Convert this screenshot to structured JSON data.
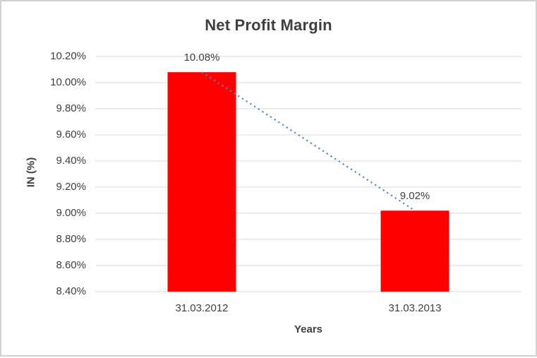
{
  "chart_data": {
    "type": "bar",
    "title": "Net Profit Margin",
    "xlabel": "Years",
    "ylabel": "IN (%)",
    "categories": [
      "31.03.2012",
      "31.03.2013"
    ],
    "values": [
      10.08,
      9.02
    ],
    "data_labels": [
      "10.08%",
      "9.02%"
    ],
    "unit": "%",
    "ylim": [
      8.4,
      10.2
    ],
    "y_tick_step": 0.2,
    "y_ticks": [
      {
        "value": 10.2,
        "label": "10.20%"
      },
      {
        "value": 10.0,
        "label": "10.00%"
      },
      {
        "value": 9.8,
        "label": "9.80%"
      },
      {
        "value": 9.6,
        "label": "9.60%"
      },
      {
        "value": 9.4,
        "label": "9.40%"
      },
      {
        "value": 9.2,
        "label": "9.20%"
      },
      {
        "value": 9.0,
        "label": "9.00%"
      },
      {
        "value": 8.8,
        "label": "8.80%"
      },
      {
        "value": 8.6,
        "label": "8.60%"
      },
      {
        "value": 8.4,
        "label": "8.40%"
      }
    ],
    "grid": "horizontal",
    "legend": "none",
    "trendline": {
      "type": "linear",
      "style": "dotted",
      "connects": [
        [
          0,
          10.08
        ],
        [
          1,
          9.02
        ]
      ]
    }
  },
  "colors": {
    "bar": "#FF0000",
    "trendline": "#4A86C8",
    "gridline": "#D9D9D9",
    "axis_line": "#D9D9D9",
    "text": "#404040",
    "title_text": "#3F3F3F",
    "frame_border": "#D1D1D1",
    "background": "#FFFFFF"
  }
}
